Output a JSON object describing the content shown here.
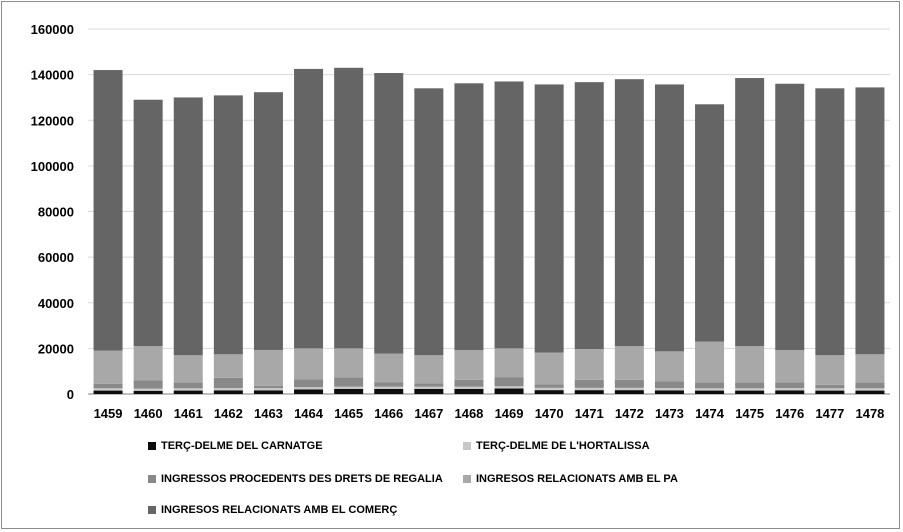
{
  "chart_data": {
    "type": "bar",
    "stacked": true,
    "categories": [
      "1459",
      "1460",
      "1461",
      "1462",
      "1463",
      "1464",
      "1465",
      "1466",
      "1467",
      "1468",
      "1469",
      "1470",
      "1471",
      "1472",
      "1473",
      "1474",
      "1475",
      "1476",
      "1477",
      "1478"
    ],
    "ylim": [
      0,
      160000
    ],
    "yticks": [
      "0",
      "20000",
      "40000",
      "60000",
      "80000",
      "100000",
      "120000",
      "140000",
      "160000"
    ],
    "grid": true,
    "legend_position": "bottom",
    "series": [
      {
        "name": "TERÇ-DELME DEL CARNATGE",
        "color": "#0d0d0d",
        "values": [
          1500,
          1400,
          1500,
          1600,
          1600,
          2000,
          2200,
          2200,
          2200,
          2200,
          2400,
          1700,
          1700,
          1700,
          1600,
          1500,
          1500,
          1600,
          1500,
          1500
        ]
      },
      {
        "name": "TERÇ-DELME DE L'HORTALISSA",
        "color": "#c8c8c8",
        "values": [
          1000,
          1000,
          1000,
          1000,
          1000,
          1000,
          1000,
          1000,
          1000,
          1000,
          1000,
          1000,
          1000,
          1000,
          1000,
          1000,
          1000,
          1000,
          1000,
          1000
        ]
      },
      {
        "name": "INGRESSOS PROCEDENTS DES DRETS DE REGALIA",
        "color": "#898989",
        "values": [
          2000,
          3500,
          2500,
          4500,
          1000,
          3500,
          4000,
          2000,
          1500,
          3000,
          4000,
          1500,
          3500,
          3500,
          3000,
          2500,
          2500,
          2500,
          1500,
          2500
        ]
      },
      {
        "name": "INGRESOS RELACIONATS AMB EL PA",
        "color": "#a8a8a8",
        "values": [
          14500,
          15100,
          12000,
          10300,
          15700,
          13500,
          12800,
          12500,
          12300,
          13000,
          12600,
          14000,
          13500,
          14800,
          13100,
          18000,
          16000,
          14100,
          13000,
          12400
        ]
      },
      {
        "name": "INGRESOS RELACIONATS AMB EL COMERÇ",
        "color": "#656565",
        "values": [
          123000,
          108000,
          113000,
          113500,
          113000,
          122500,
          123000,
          123000,
          117000,
          117000,
          117000,
          117500,
          117000,
          117000,
          117000,
          104000,
          117500,
          116800,
          117000,
          117000
        ]
      }
    ],
    "xlabel": "",
    "ylabel": ""
  }
}
